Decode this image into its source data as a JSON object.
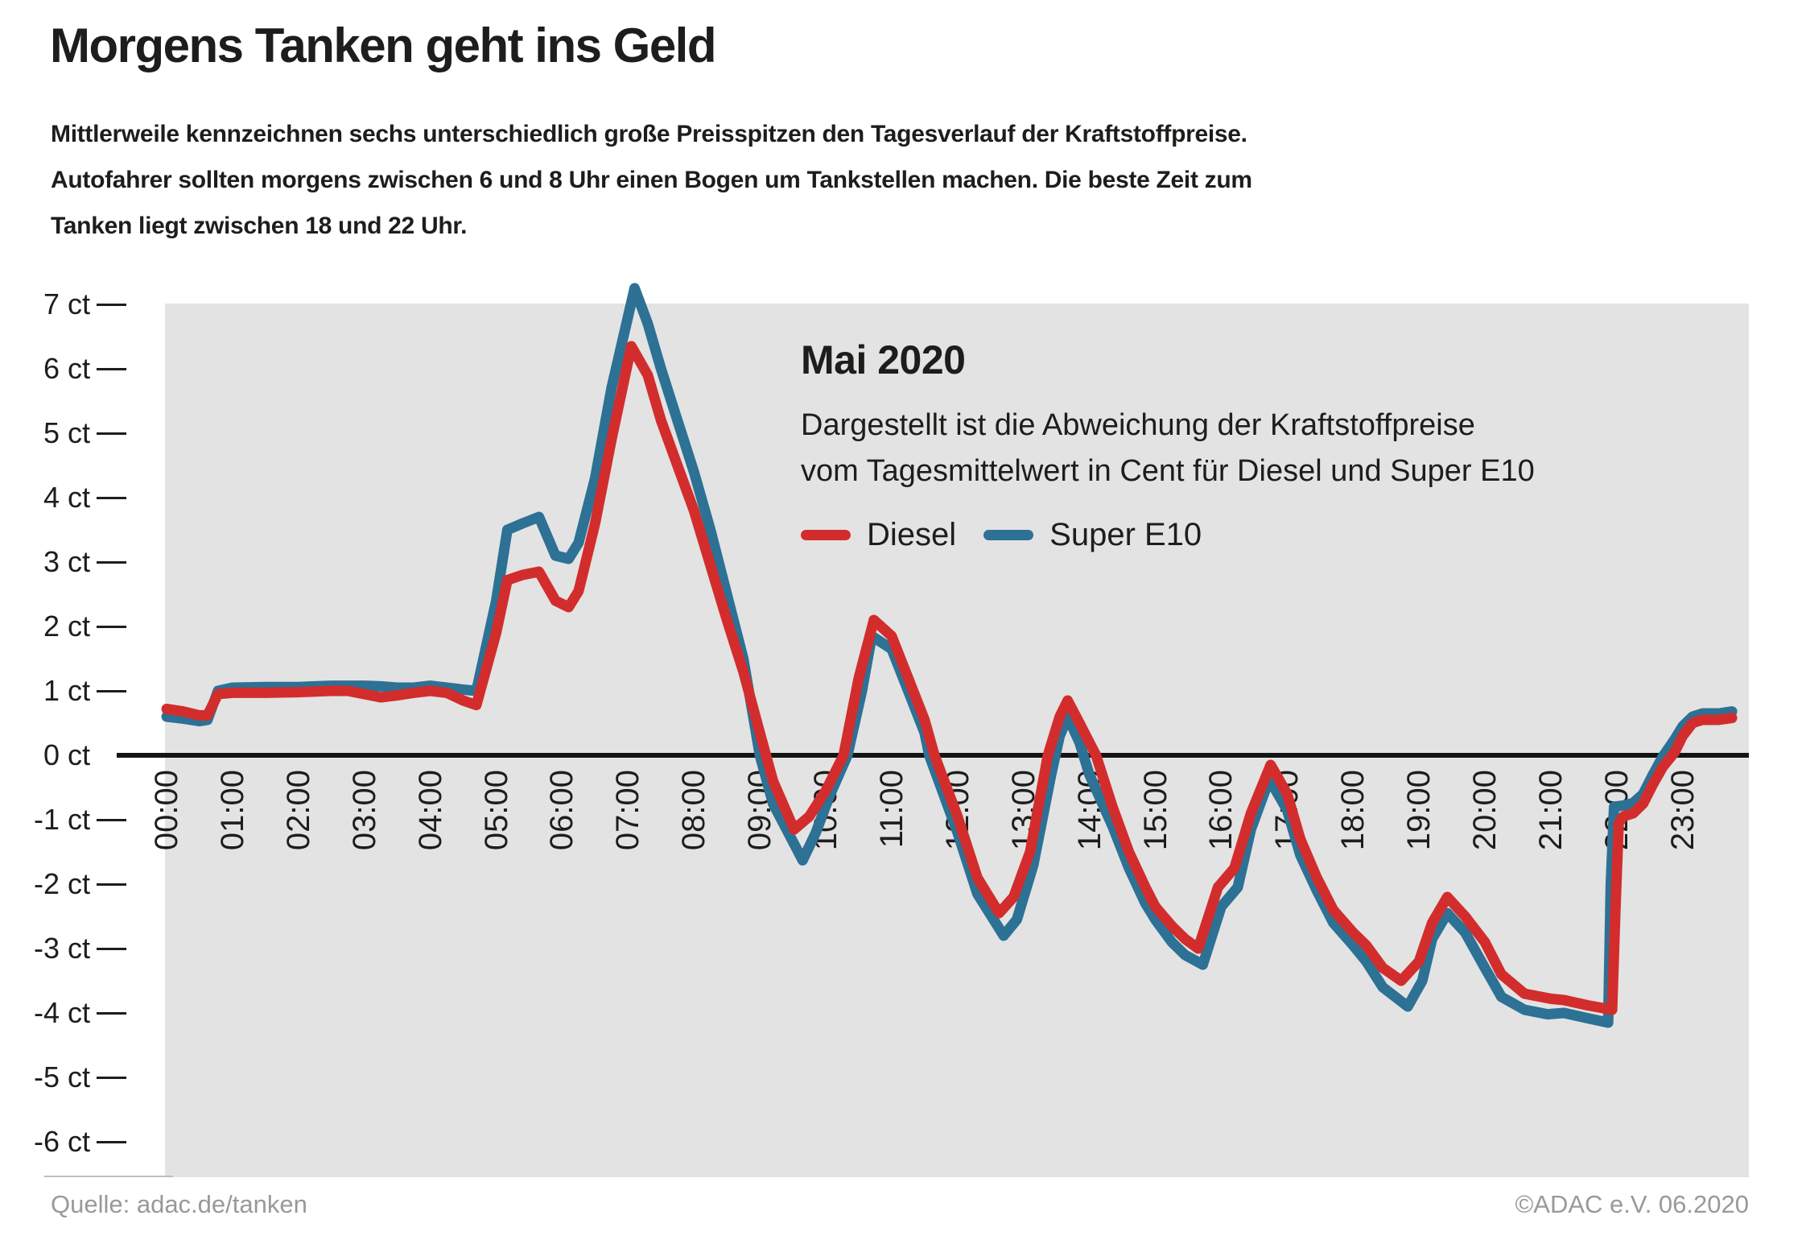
{
  "title": "Morgens Tanken geht ins Geld",
  "intro_lines": [
    "Mittlerweile kennzeichnen sechs unterschiedlich große Preisspitzen den Tagesverlauf der Kraftstoffpreise.",
    "Autofahrer sollten morgens zwischen 6 und 8 Uhr einen Bogen um Tankstellen machen. Die beste Zeit zum",
    "Tanken liegt zwischen 18 und 22 Uhr."
  ],
  "annotation": {
    "heading": "Mai 2020",
    "desc_lines": [
      "Dargestellt ist die Abweichung der Kraftstoffpreise",
      "vom Tagesmittelwert in Cent für Diesel und Super E10"
    ]
  },
  "footer": {
    "source": "Quelle: adac.de/tanken",
    "copyright": "©ADAC e.V.  06.2020"
  },
  "colors": {
    "diesel_red": "#d22d2c",
    "super_e10_blue": "#2d7195",
    "plot_background": "#e3e3e3",
    "zero_line": "#141414",
    "text": "#1d1d1b",
    "footer_text": "#999999"
  },
  "chart_data": {
    "type": "line",
    "title": "Mai 2020",
    "subtitle": "Dargestellt ist die Abweichung der Kraftstoffpreise vom Tagesmittelwert in Cent für Diesel und Super E10",
    "x_unit": "Uhrzeit (hour of day)",
    "y_unit": "ct",
    "ylim": [
      -6.55,
      7.05
    ],
    "grid": false,
    "zero_line": true,
    "legend_position": "inside-top-right",
    "yticks": [
      {
        "v": 7,
        "label": "7 ct"
      },
      {
        "v": 6,
        "label": "6 ct"
      },
      {
        "v": 5,
        "label": "5 ct"
      },
      {
        "v": 4,
        "label": "4 ct"
      },
      {
        "v": 3,
        "label": "3 ct"
      },
      {
        "v": 2,
        "label": "2 ct"
      },
      {
        "v": 1,
        "label": "1 ct"
      },
      {
        "v": 0,
        "label": "0 ct"
      },
      {
        "v": -1,
        "label": "-1 ct"
      },
      {
        "v": -2,
        "label": "-2 ct"
      },
      {
        "v": -3,
        "label": "-3 ct"
      },
      {
        "v": -4,
        "label": "-4 ct"
      },
      {
        "v": -5,
        "label": "-5 ct"
      },
      {
        "v": -6,
        "label": "-6 ct"
      }
    ],
    "xticks": [
      "00:00",
      "01:00",
      "02:00",
      "03:00",
      "04:00",
      "05:00",
      "06:00",
      "07:00",
      "08:00",
      "09:00",
      "10:00",
      "11:00",
      "12:00",
      "13:00",
      "14:00",
      "15:00",
      "16:00",
      "17:00",
      "18:00",
      "19:00",
      "20:00",
      "21:00",
      "22:00",
      "23:00"
    ],
    "series": [
      {
        "name": "Super E10",
        "color": "#2d7195",
        "points": [
          [
            0,
            0.6
          ],
          [
            0.25,
            0.57
          ],
          [
            0.5,
            0.53
          ],
          [
            0.62,
            0.55
          ],
          [
            0.78,
            1
          ],
          [
            1,
            1.05
          ],
          [
            1.5,
            1.06
          ],
          [
            2,
            1.06
          ],
          [
            2.5,
            1.08
          ],
          [
            3,
            1.08
          ],
          [
            3.25,
            1.07
          ],
          [
            3.5,
            1.05
          ],
          [
            3.75,
            1.05
          ],
          [
            4,
            1.08
          ],
          [
            4.25,
            1.05
          ],
          [
            4.5,
            1.02
          ],
          [
            4.7,
            1
          ],
          [
            5,
            2.4
          ],
          [
            5.17,
            3.5
          ],
          [
            5.4,
            3.6
          ],
          [
            5.65,
            3.7
          ],
          [
            5.9,
            3.1
          ],
          [
            6.1,
            3.05
          ],
          [
            6.25,
            3.3
          ],
          [
            6.5,
            4.3
          ],
          [
            6.75,
            5.7
          ],
          [
            7.1,
            7.25
          ],
          [
            7.3,
            6.7
          ],
          [
            7.5,
            6
          ],
          [
            7.75,
            5.2
          ],
          [
            8,
            4.4
          ],
          [
            8.25,
            3.5
          ],
          [
            8.5,
            2.5
          ],
          [
            8.75,
            1.5
          ],
          [
            9,
            0
          ],
          [
            9.2,
            -0.75
          ],
          [
            9.65,
            -1.63
          ],
          [
            9.85,
            -1.2
          ],
          [
            10.05,
            -0.65
          ],
          [
            10.33,
            0
          ],
          [
            10.55,
            1
          ],
          [
            10.7,
            1.85
          ],
          [
            11,
            1.65
          ],
          [
            11.25,
            1
          ],
          [
            11.5,
            0.35
          ],
          [
            11.57,
            0
          ],
          [
            12,
            -1.2
          ],
          [
            12.3,
            -2.15
          ],
          [
            12.7,
            -2.8
          ],
          [
            12.9,
            -2.55
          ],
          [
            13.15,
            -1.7
          ],
          [
            13.42,
            -0.3
          ],
          [
            13.55,
            0.3
          ],
          [
            13.67,
            0.6
          ],
          [
            13.85,
            0.2
          ],
          [
            14,
            -0.3
          ],
          [
            14.35,
            -1.1
          ],
          [
            14.6,
            -1.75
          ],
          [
            14.85,
            -2.3
          ],
          [
            15,
            -2.55
          ],
          [
            15.25,
            -2.9
          ],
          [
            15.45,
            -3.1
          ],
          [
            15.72,
            -3.25
          ],
          [
            16,
            -2.35
          ],
          [
            16.25,
            -2.05
          ],
          [
            16.45,
            -1.15
          ],
          [
            16.73,
            -0.37
          ],
          [
            17,
            -0.85
          ],
          [
            17.2,
            -1.55
          ],
          [
            17.45,
            -2.1
          ],
          [
            17.7,
            -2.6
          ],
          [
            18,
            -2.95
          ],
          [
            18.2,
            -3.2
          ],
          [
            18.45,
            -3.6
          ],
          [
            18.83,
            -3.9
          ],
          [
            19.05,
            -3.5
          ],
          [
            19.2,
            -2.85
          ],
          [
            19.43,
            -2.45
          ],
          [
            19.7,
            -2.75
          ],
          [
            20,
            -3.3
          ],
          [
            20.25,
            -3.75
          ],
          [
            20.6,
            -3.95
          ],
          [
            20.95,
            -4.02
          ],
          [
            21.2,
            -4
          ],
          [
            21.55,
            -4.08
          ],
          [
            21.87,
            -4.15
          ],
          [
            21.91,
            -2
          ],
          [
            21.96,
            -0.8
          ],
          [
            22.1,
            -0.78
          ],
          [
            22.25,
            -0.74
          ],
          [
            22.4,
            -0.6
          ],
          [
            22.55,
            -0.3
          ],
          [
            22.7,
            -0.02
          ],
          [
            22.88,
            0.25
          ],
          [
            23,
            0.45
          ],
          [
            23.15,
            0.6
          ],
          [
            23.3,
            0.65
          ],
          [
            23.55,
            0.65
          ],
          [
            23.75,
            0.68
          ]
        ]
      },
      {
        "name": "Diesel",
        "color": "#d22d2c",
        "points": [
          [
            0,
            0.72
          ],
          [
            0.25,
            0.68
          ],
          [
            0.5,
            0.62
          ],
          [
            0.62,
            0.62
          ],
          [
            0.78,
            0.95
          ],
          [
            1,
            0.97
          ],
          [
            1.5,
            0.97
          ],
          [
            2,
            0.98
          ],
          [
            2.5,
            1
          ],
          [
            2.75,
            1
          ],
          [
            3,
            0.95
          ],
          [
            3.25,
            0.9
          ],
          [
            3.5,
            0.93
          ],
          [
            3.75,
            0.97
          ],
          [
            4,
            1
          ],
          [
            4.25,
            0.97
          ],
          [
            4.5,
            0.85
          ],
          [
            4.7,
            0.78
          ],
          [
            5,
            1.9
          ],
          [
            5.17,
            2.72
          ],
          [
            5.4,
            2.8
          ],
          [
            5.65,
            2.85
          ],
          [
            5.9,
            2.4
          ],
          [
            6.1,
            2.3
          ],
          [
            6.25,
            2.55
          ],
          [
            6.5,
            3.6
          ],
          [
            6.75,
            4.9
          ],
          [
            7.05,
            6.35
          ],
          [
            7.3,
            5.9
          ],
          [
            7.5,
            5.2
          ],
          [
            7.75,
            4.5
          ],
          [
            8,
            3.8
          ],
          [
            8.25,
            2.95
          ],
          [
            8.5,
            2.1
          ],
          [
            8.75,
            1.3
          ],
          [
            9,
            0.35
          ],
          [
            9.2,
            -0.4
          ],
          [
            9.52,
            -1.15
          ],
          [
            9.75,
            -0.95
          ],
          [
            10,
            -0.55
          ],
          [
            10.27,
            0
          ],
          [
            10.5,
            1.2
          ],
          [
            10.73,
            2.1
          ],
          [
            11,
            1.85
          ],
          [
            11.25,
            1.2
          ],
          [
            11.5,
            0.55
          ],
          [
            11.65,
            0
          ],
          [
            12,
            -0.95
          ],
          [
            12.3,
            -1.9
          ],
          [
            12.63,
            -2.45
          ],
          [
            12.85,
            -2.2
          ],
          [
            13.1,
            -1.5
          ],
          [
            13.37,
            0
          ],
          [
            13.55,
            0.6
          ],
          [
            13.67,
            0.85
          ],
          [
            13.85,
            0.5
          ],
          [
            14.1,
            0
          ],
          [
            14.35,
            -0.8
          ],
          [
            14.6,
            -1.5
          ],
          [
            14.85,
            -2.05
          ],
          [
            15,
            -2.35
          ],
          [
            15.25,
            -2.65
          ],
          [
            15.45,
            -2.85
          ],
          [
            15.65,
            -3
          ],
          [
            15.95,
            -2.05
          ],
          [
            16.2,
            -1.75
          ],
          [
            16.45,
            -0.9
          ],
          [
            16.75,
            -0.15
          ],
          [
            17,
            -0.6
          ],
          [
            17.2,
            -1.3
          ],
          [
            17.45,
            -1.9
          ],
          [
            17.7,
            -2.4
          ],
          [
            18,
            -2.75
          ],
          [
            18.2,
            -2.95
          ],
          [
            18.45,
            -3.3
          ],
          [
            18.73,
            -3.5
          ],
          [
            19,
            -3.2
          ],
          [
            19.2,
            -2.6
          ],
          [
            19.43,
            -2.2
          ],
          [
            19.7,
            -2.5
          ],
          [
            20,
            -2.9
          ],
          [
            20.25,
            -3.4
          ],
          [
            20.6,
            -3.7
          ],
          [
            21,
            -3.78
          ],
          [
            21.2,
            -3.8
          ],
          [
            21.55,
            -3.88
          ],
          [
            21.93,
            -3.95
          ],
          [
            21.98,
            -2.4
          ],
          [
            22.03,
            -1.05
          ],
          [
            22.1,
            -0.95
          ],
          [
            22.25,
            -0.9
          ],
          [
            22.4,
            -0.75
          ],
          [
            22.55,
            -0.45
          ],
          [
            22.7,
            -0.18
          ],
          [
            22.88,
            0.05
          ],
          [
            23,
            0.3
          ],
          [
            23.15,
            0.5
          ],
          [
            23.3,
            0.55
          ],
          [
            23.55,
            0.55
          ],
          [
            23.75,
            0.58
          ]
        ]
      }
    ]
  }
}
